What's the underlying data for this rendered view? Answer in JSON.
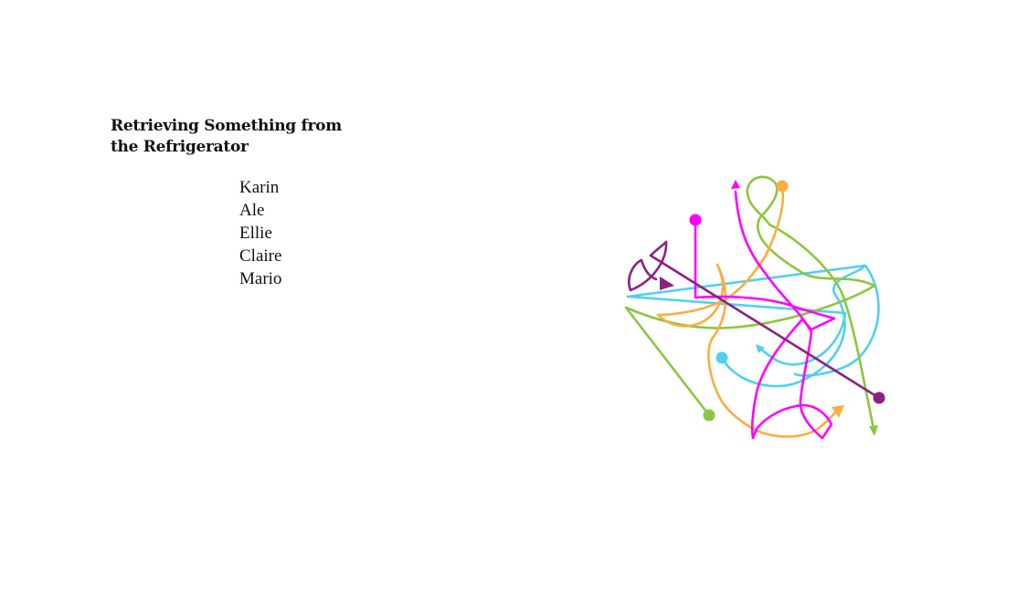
{
  "title": "Retrieving Something from the Refrigerator",
  "people": [
    {
      "name": "Karin",
      "color": "#ff00ff"
    },
    {
      "name": "Ale",
      "color": "#fbad3e"
    },
    {
      "name": "Ellie",
      "color": "#8cc63f"
    },
    {
      "name": "Claire",
      "color": "#4fd0f0"
    },
    {
      "name": "Mario",
      "color": "#8b2283"
    }
  ]
}
